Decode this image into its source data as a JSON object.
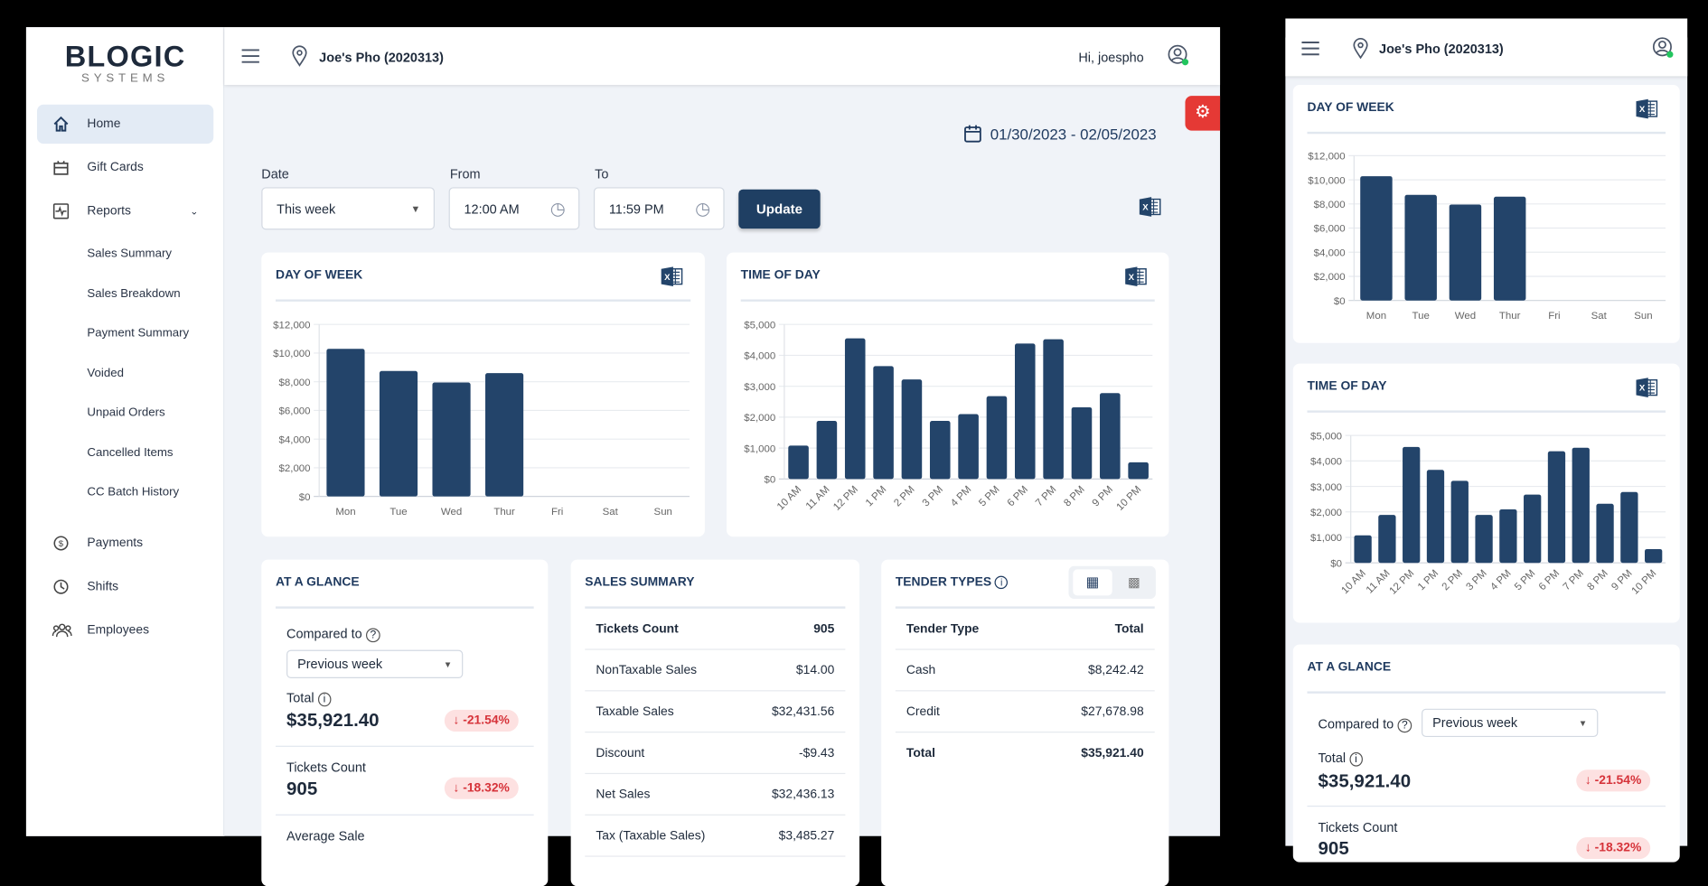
{
  "brand": {
    "logo_main": "BLOGIC",
    "logo_sub": "SYSTEMS"
  },
  "sidebar": {
    "items": [
      {
        "label": "Home",
        "icon": "home-icon"
      },
      {
        "label": "Gift Cards",
        "icon": "gift-card-icon"
      },
      {
        "label": "Reports",
        "icon": "reports-icon"
      },
      {
        "label": "Payments",
        "icon": "payments-icon"
      },
      {
        "label": "Shifts",
        "icon": "shifts-icon"
      },
      {
        "label": "Employees",
        "icon": "employees-icon"
      }
    ],
    "report_subitems": [
      "Sales Summary",
      "Sales Breakdown",
      "Payment Summary",
      "Voided",
      "Unpaid Orders",
      "Cancelled Items",
      "CC Batch History"
    ]
  },
  "header": {
    "location": "Joe's Pho (2020313)",
    "greeting": "Hi, joespho",
    "status_color": "#22c55e"
  },
  "date_range": "01/30/2023 - 02/05/2023",
  "filters": {
    "date_label": "Date",
    "date_value": "This week",
    "from_label": "From",
    "from_value": "12:00 AM",
    "to_label": "To",
    "to_value": "11:59 PM",
    "update": "Update"
  },
  "colors": {
    "accent": "#1f3f63",
    "bar": "#23446a",
    "settings": "#e53935",
    "negative": "#d6333a"
  },
  "cards": {
    "day_of_week": "DAY OF WEEK",
    "time_of_day": "TIME OF DAY",
    "at_a_glance": "AT A GLANCE",
    "sales_summary": "SALES SUMMARY",
    "tender_types": "TENDER TYPES"
  },
  "glance": {
    "compared_label": "Compared to",
    "compared_value": "Previous week",
    "total_label": "Total",
    "total_value": "$35,921.40",
    "total_change": "↓ -21.54%",
    "tickets_label": "Tickets Count",
    "tickets_value": "905",
    "tickets_change": "↓ -18.32%",
    "avg_label": "Average Sale"
  },
  "sales_summary": {
    "rows": [
      {
        "label": "Tickets Count",
        "value": "905"
      },
      {
        "label": "NonTaxable Sales",
        "value": "$14.00"
      },
      {
        "label": "Taxable Sales",
        "value": "$32,431.56"
      },
      {
        "label": "Discount",
        "value": "-$9.43"
      },
      {
        "label": "Net Sales",
        "value": "$32,436.13"
      },
      {
        "label": "Tax (Taxable Sales)",
        "value": "$3,485.27"
      }
    ]
  },
  "tender": {
    "headers": [
      "Tender Type",
      "Total"
    ],
    "rows": [
      {
        "label": "Cash",
        "value": "$8,242.42"
      },
      {
        "label": "Credit",
        "value": "$27,678.98"
      },
      {
        "label": "Total",
        "value": "$35,921.40"
      }
    ]
  },
  "chart_data": [
    {
      "type": "bar",
      "title": "DAY OF WEEK",
      "categories": [
        "Mon",
        "Tue",
        "Wed",
        "Thur",
        "Fri",
        "Sat",
        "Sun"
      ],
      "values": [
        10300,
        8750,
        7950,
        8600,
        0,
        0,
        0
      ],
      "ylim": [
        0,
        12000
      ],
      "yticks": [
        0,
        2000,
        4000,
        6000,
        8000,
        10000,
        12000
      ],
      "ytick_labels": [
        "$0",
        "$2,000",
        "$4,000",
        "$6,000",
        "$8,000",
        "$10,000",
        "$12,000"
      ],
      "grid": true
    },
    {
      "type": "bar",
      "title": "TIME OF DAY",
      "categories": [
        "10 AM",
        "11 AM",
        "12 PM",
        "1 PM",
        "2 PM",
        "3 PM",
        "4 PM",
        "5 PM",
        "6 PM",
        "7 PM",
        "8 PM",
        "9 PM",
        "10 PM"
      ],
      "values": [
        1080,
        1880,
        4550,
        3650,
        3220,
        1880,
        2100,
        2680,
        4380,
        4520,
        2320,
        2780,
        540
      ],
      "ylim": [
        0,
        5000
      ],
      "yticks": [
        0,
        1000,
        2000,
        3000,
        4000,
        5000
      ],
      "ytick_labels": [
        "$0",
        "$1,000",
        "$2,000",
        "$3,000",
        "$4,000",
        "$5,000"
      ],
      "grid": true
    }
  ]
}
